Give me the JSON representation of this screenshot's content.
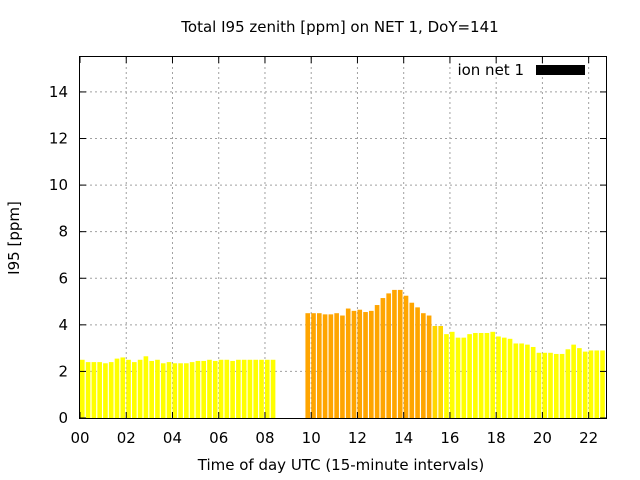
{
  "chart_data": {
    "type": "bar",
    "title": "Total I95 zenith [ppm] on NET 1, DoY=141",
    "xlabel": "Time of day UTC (15-minute intervals)",
    "ylabel": "I95 [ppm]",
    "xlim": [
      0,
      22.75
    ],
    "ylim": [
      0,
      15.5
    ],
    "x_ticks": [
      "00",
      "02",
      "04",
      "06",
      "08",
      "10",
      "12",
      "14",
      "16",
      "18",
      "20",
      "22"
    ],
    "y_ticks": [
      "0",
      "2",
      "4",
      "6",
      "8",
      "10",
      "12",
      "14"
    ],
    "grid": true,
    "legend": {
      "position": "top-right",
      "label": "ion net 1",
      "color": "#000000"
    },
    "colors": {
      "low": "#ffff00",
      "mid": "#ffd700",
      "high": "#ffa500"
    },
    "interval_hours": 0.25,
    "series": [
      {
        "name": "ion net 1",
        "x": [
          0.0,
          0.25,
          0.5,
          0.75,
          1.0,
          1.25,
          1.5,
          1.75,
          2.0,
          2.25,
          2.5,
          2.75,
          3.0,
          3.25,
          3.5,
          3.75,
          4.0,
          4.25,
          4.5,
          4.75,
          5.0,
          5.25,
          5.5,
          5.75,
          6.0,
          6.25,
          6.5,
          6.75,
          7.0,
          7.25,
          7.5,
          7.75,
          8.0,
          8.25,
          9.75,
          10.0,
          10.25,
          10.5,
          10.75,
          11.0,
          11.25,
          11.5,
          11.75,
          12.0,
          12.25,
          12.5,
          12.75,
          13.0,
          13.25,
          13.5,
          13.75,
          14.0,
          14.25,
          14.5,
          14.75,
          15.0,
          15.25,
          15.5,
          15.75,
          16.0,
          16.25,
          16.5,
          16.75,
          17.0,
          17.25,
          17.5,
          17.75,
          18.0,
          18.25,
          18.5,
          18.75,
          19.0,
          19.25,
          19.5,
          19.75,
          20.0,
          20.25,
          20.5,
          20.75,
          21.0,
          21.25,
          21.5,
          21.75,
          22.0,
          22.25,
          22.5
        ],
        "values": [
          2.5,
          2.4,
          2.4,
          2.4,
          2.35,
          2.4,
          2.55,
          2.6,
          2.5,
          2.4,
          2.5,
          2.65,
          2.45,
          2.5,
          2.35,
          2.4,
          2.35,
          2.35,
          2.35,
          2.4,
          2.45,
          2.45,
          2.5,
          2.45,
          2.5,
          2.5,
          2.45,
          2.5,
          2.5,
          2.5,
          2.5,
          2.5,
          2.5,
          2.5,
          4.5,
          4.5,
          4.5,
          4.45,
          4.45,
          4.5,
          4.4,
          4.7,
          4.6,
          4.65,
          4.55,
          4.6,
          4.85,
          5.15,
          5.35,
          5.5,
          5.5,
          5.25,
          4.95,
          4.75,
          4.5,
          4.4,
          3.95,
          3.95,
          3.6,
          3.7,
          3.45,
          3.45,
          3.6,
          3.65,
          3.65,
          3.65,
          3.7,
          3.5,
          3.45,
          3.4,
          3.2,
          3.2,
          3.15,
          3.05,
          2.8,
          2.8,
          2.8,
          2.75,
          2.75,
          2.95,
          3.15,
          3.0,
          2.85,
          2.9,
          2.9,
          2.9
        ]
      }
    ]
  }
}
